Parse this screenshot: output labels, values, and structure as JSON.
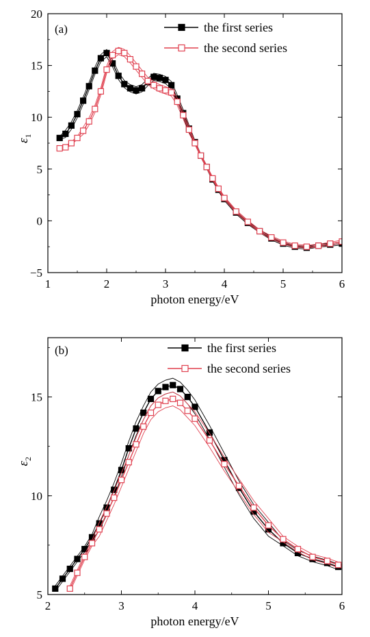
{
  "chart_data": [
    {
      "type": "line",
      "panel_label": "(a)",
      "xlabel": "photon energy/eV",
      "ylabel": "ε",
      "ylabel_sub": "1",
      "xlim": [
        1,
        6
      ],
      "ylim": [
        -5,
        20
      ],
      "xticks": [
        1,
        2,
        3,
        4,
        5,
        6
      ],
      "yticks": [
        -5,
        0,
        5,
        10,
        15,
        20
      ],
      "legend_position": "top-right",
      "series": [
        {
          "name": "the first series",
          "marker": "filled-square",
          "color": "#000000",
          "x": [
            1.2,
            1.3,
            1.4,
            1.5,
            1.6,
            1.7,
            1.8,
            1.9,
            2.0,
            2.1,
            2.2,
            2.3,
            2.4,
            2.5,
            2.6,
            2.7,
            2.8,
            2.9,
            3.0,
            3.1,
            3.2,
            3.3,
            3.4,
            3.5,
            3.6,
            3.7,
            3.8,
            3.9,
            4.0,
            4.2,
            4.4,
            4.6,
            4.8,
            5.0,
            5.2,
            5.4,
            5.6,
            5.8,
            6.0
          ],
          "y": [
            8.0,
            8.4,
            9.2,
            10.3,
            11.6,
            13.0,
            14.5,
            15.7,
            16.2,
            15.2,
            14.0,
            13.2,
            12.8,
            12.6,
            12.8,
            13.4,
            13.9,
            13.8,
            13.6,
            13.1,
            11.8,
            10.4,
            8.9,
            7.6,
            6.3,
            5.2,
            4.0,
            3.0,
            2.1,
            0.8,
            -0.2,
            -1.0,
            -1.7,
            -2.2,
            -2.5,
            -2.6,
            -2.4,
            -2.3,
            -2.2
          ]
        },
        {
          "name": "the second series",
          "marker": "open-square",
          "color": "#e0404f",
          "x": [
            1.2,
            1.3,
            1.4,
            1.5,
            1.6,
            1.7,
            1.8,
            1.9,
            2.0,
            2.1,
            2.2,
            2.3,
            2.4,
            2.5,
            2.6,
            2.7,
            2.8,
            2.9,
            3.0,
            3.1,
            3.2,
            3.3,
            3.4,
            3.5,
            3.6,
            3.7,
            3.8,
            3.9,
            4.0,
            4.2,
            4.4,
            4.6,
            4.8,
            5.0,
            5.2,
            5.4,
            5.6,
            5.8,
            6.0
          ],
          "y": [
            7.0,
            7.1,
            7.5,
            8.0,
            8.7,
            9.6,
            10.8,
            12.5,
            14.6,
            16.0,
            16.4,
            16.2,
            15.6,
            14.9,
            14.2,
            13.5,
            13.1,
            12.8,
            12.6,
            12.4,
            11.5,
            10.2,
            8.8,
            7.5,
            6.3,
            5.2,
            4.1,
            3.1,
            2.2,
            0.9,
            -0.1,
            -1.0,
            -1.6,
            -2.1,
            -2.4,
            -2.5,
            -2.4,
            -2.2,
            -2.0
          ]
        }
      ]
    },
    {
      "type": "line",
      "panel_label": "(b)",
      "xlabel": "photon energy/eV",
      "ylabel": "ε",
      "ylabel_sub": "2",
      "xlim": [
        2,
        6
      ],
      "ylim": [
        5,
        18
      ],
      "xticks": [
        2,
        3,
        4,
        5,
        6
      ],
      "yticks": [
        5,
        10,
        15
      ],
      "legend_position": "top-right",
      "series": [
        {
          "name": "the first series",
          "marker": "filled-square",
          "color": "#000000",
          "x": [
            2.1,
            2.2,
            2.3,
            2.4,
            2.5,
            2.6,
            2.7,
            2.8,
            2.9,
            3.0,
            3.1,
            3.2,
            3.3,
            3.4,
            3.5,
            3.6,
            3.7,
            3.8,
            3.9,
            4.0,
            4.2,
            4.4,
            4.6,
            4.8,
            5.0,
            5.2,
            5.4,
            5.6,
            5.8,
            5.95
          ],
          "y": [
            5.3,
            5.8,
            6.3,
            6.8,
            7.3,
            7.9,
            8.6,
            9.4,
            10.3,
            11.3,
            12.4,
            13.4,
            14.2,
            14.9,
            15.3,
            15.5,
            15.6,
            15.4,
            15.0,
            14.5,
            13.2,
            11.8,
            10.4,
            9.2,
            8.3,
            7.6,
            7.1,
            6.8,
            6.6,
            6.4
          ]
        },
        {
          "name": "the second series",
          "marker": "open-square",
          "color": "#e0404f",
          "x": [
            2.3,
            2.4,
            2.5,
            2.6,
            2.7,
            2.8,
            2.9,
            3.0,
            3.1,
            3.2,
            3.3,
            3.4,
            3.5,
            3.6,
            3.7,
            3.8,
            3.9,
            4.0,
            4.2,
            4.4,
            4.6,
            4.8,
            5.0,
            5.2,
            5.4,
            5.6,
            5.8,
            5.95
          ],
          "y": [
            5.3,
            6.1,
            6.9,
            7.6,
            8.3,
            9.1,
            9.9,
            10.8,
            11.7,
            12.6,
            13.5,
            14.2,
            14.6,
            14.8,
            14.9,
            14.7,
            14.3,
            13.9,
            12.8,
            11.6,
            10.5,
            9.4,
            8.5,
            7.8,
            7.3,
            6.9,
            6.7,
            6.5
          ]
        }
      ]
    }
  ]
}
